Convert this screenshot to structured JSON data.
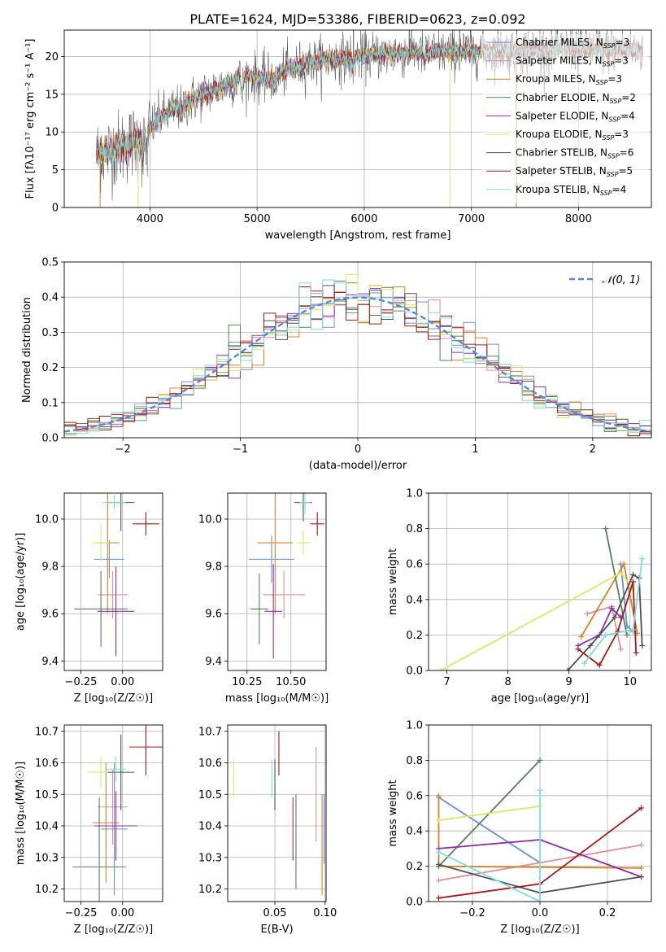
{
  "figure_title": "PLATE=1624, MJD=53386, FIBERID=0623, z=0.092",
  "models": [
    {
      "name": "Chabrier MILES",
      "nssp": "3",
      "color": "#6a8fd8"
    },
    {
      "name": "Salpeter MILES",
      "nssp": "3",
      "color": "#e08e9a"
    },
    {
      "name": "Kroupa MILES",
      "nssp": "3",
      "color": "#d4822a"
    },
    {
      "name": "Chabrier ELODIE",
      "nssp": "2",
      "color": "#55805a"
    },
    {
      "name": "Salpeter ELODIE",
      "nssp": "4",
      "color": "#8e2fa8"
    },
    {
      "name": "Kroupa ELODIE",
      "nssp": "3",
      "color": "#d8e86a"
    },
    {
      "name": "Chabrier STELIB",
      "nssp": "6",
      "color": "#505050"
    },
    {
      "name": "Salpeter STELIB",
      "nssp": "5",
      "color": "#a31a1a"
    },
    {
      "name": "Kroupa STELIB",
      "nssp": "4",
      "color": "#7fdcdc"
    }
  ],
  "chart_data": [
    {
      "id": "spectrum",
      "type": "line",
      "xlabel": "wavelength [Angstrom, rest frame]",
      "ylabel": "Flux [fλ10⁻¹⁷ erg cm⁻² s⁻¹ A⁻¹]",
      "xlim": [
        3200,
        8680
      ],
      "ylim": [
        0,
        23.5
      ],
      "xticks": [
        4000,
        5000,
        6000,
        7000,
        8000
      ],
      "yticks": [
        0,
        5,
        10,
        15,
        20
      ],
      "x_range_data": [
        3500,
        8600
      ],
      "continuum_x": [
        3500,
        3700,
        3900,
        4000,
        4100,
        4300,
        4500,
        4700,
        4900,
        5100,
        5300,
        5500,
        5800,
        6100,
        6400,
        6700,
        7000,
        7300,
        7600,
        8000,
        8300,
        8600
      ],
      "continuum_y": [
        7.0,
        7.8,
        9.0,
        10.5,
        12.0,
        13.5,
        15.0,
        16.2,
        17.5,
        17.0,
        18.3,
        19.2,
        19.8,
        20.2,
        20.5,
        20.6,
        20.7,
        20.8,
        20.9,
        21.0,
        20.9,
        20.8
      ],
      "absorption_lines": [
        {
          "x": 4861,
          "depth": 0.12
        },
        {
          "x": 5175,
          "depth": 0.1
        },
        {
          "x": 3934,
          "depth": 0.3
        },
        {
          "x": 3969,
          "depth": 0.3
        },
        {
          "x": 4300,
          "depth": 0.12
        },
        {
          "x": 5890,
          "depth": 0.08
        },
        {
          "x": 6563,
          "depth": 0.05
        }
      ],
      "spikes": [
        {
          "x": 3535,
          "y0": 0.0,
          "y1": 7.0,
          "model": 2
        },
        {
          "x": 3890,
          "y0": 0.0,
          "y1": 9.0,
          "model": 5
        },
        {
          "x": 6800,
          "y0": 0.0,
          "y1": 20.5,
          "model": 5
        },
        {
          "x": 7420,
          "y0": 0.0,
          "y1": 20.8,
          "model": 2
        },
        {
          "x": 5900,
          "y0": 20.0,
          "y1": 24.0,
          "model": 6
        },
        {
          "x": 6420,
          "y0": 20.0,
          "y1": 23.5,
          "model": 6
        },
        {
          "x": 6890,
          "y0": 20.0,
          "y1": 23.5,
          "model": 6
        }
      ]
    },
    {
      "id": "residuals",
      "type": "step",
      "xlabel": "(data-model)/error",
      "ylabel": "Normed distribution",
      "xlim": [
        -2.5,
        2.5
      ],
      "ylim": [
        0,
        0.5
      ],
      "xticks": [
        -2,
        -1,
        0,
        1,
        2
      ],
      "yticks": [
        0.0,
        0.1,
        0.2,
        0.3,
        0.4,
        0.5
      ],
      "legend_label": "𝒩(0, 1)",
      "legend_loc": "upper-right",
      "bin_width": 0.1,
      "bin_start": -2.5,
      "gaussian": {
        "mu": 0,
        "sigma": 1,
        "color": "#5b87d6"
      }
    },
    {
      "id": "age_vs_Z",
      "type": "errorbar",
      "xlabel": "Z [log₁₀(Z/Z☉)]",
      "ylabel": "age  [log₁₀(age/yr)]",
      "xlim": [
        -0.35,
        0.24
      ],
      "ylim": [
        9.36,
        10.11
      ],
      "xticks": [
        -0.25,
        0.0
      ],
      "xticklabels": [
        "−0.25",
        "0.00"
      ],
      "yticks": [
        9.4,
        9.6,
        9.8,
        10.0
      ],
      "points": [
        {
          "x": -0.08,
          "y": 9.83,
          "xerr": 0.09,
          "yerr": 0.08,
          "model": 0
        },
        {
          "x": -0.06,
          "y": 9.68,
          "xerr": 0.09,
          "yerr": 0.1,
          "model": 1
        },
        {
          "x": -0.09,
          "y": 9.9,
          "xerr": 0.07,
          "yerr": 0.3,
          "model": 2
        },
        {
          "x": -0.13,
          "y": 9.62,
          "xerr": 0.16,
          "yerr": 0.16,
          "model": 3
        },
        {
          "x": -0.04,
          "y": 9.61,
          "xerr": 0.11,
          "yerr": 0.19,
          "model": 4
        },
        {
          "x": -0.13,
          "y": 9.9,
          "xerr": 0.05,
          "yerr": 0.08,
          "model": 5
        },
        {
          "x": -0.01,
          "y": 10.07,
          "xerr": 0.08,
          "yerr": 0.12,
          "model": 6
        },
        {
          "x": 0.14,
          "y": 9.98,
          "xerr": 0.08,
          "yerr": 0.05,
          "model": 7
        },
        {
          "x": -0.05,
          "y": 10.07,
          "xerr": 0.07,
          "yerr": 0.03,
          "model": 8
        }
      ]
    },
    {
      "id": "age_vs_mass",
      "type": "errorbar",
      "xlabel": "mass [log₁₀(M/M☉)]",
      "ylabel": "",
      "xlim": [
        10.14,
        10.7
      ],
      "ylim": [
        9.36,
        10.11
      ],
      "xticks": [
        10.25,
        10.5
      ],
      "xticklabels": [
        "10.25",
        "10.50"
      ],
      "yticks": [
        9.4,
        9.6,
        9.8,
        10.0
      ],
      "points": [
        {
          "x": 10.39,
          "y": 9.83,
          "xerr": 0.13,
          "yerr": 0.1,
          "model": 0
        },
        {
          "x": 10.46,
          "y": 9.68,
          "xerr": 0.12,
          "yerr": 0.1,
          "model": 1
        },
        {
          "x": 10.41,
          "y": 9.9,
          "xerr": 0.1,
          "yerr": 0.3,
          "model": 2
        },
        {
          "x": 10.32,
          "y": 9.62,
          "xerr": 0.05,
          "yerr": 0.15,
          "model": 3
        },
        {
          "x": 10.4,
          "y": 9.61,
          "xerr": 0.05,
          "yerr": 0.2,
          "model": 4
        },
        {
          "x": 10.57,
          "y": 9.9,
          "xerr": 0.04,
          "yerr": 0.05,
          "model": 5
        },
        {
          "x": 10.57,
          "y": 10.07,
          "xerr": 0.05,
          "yerr": 0.08,
          "model": 6
        },
        {
          "x": 10.65,
          "y": 9.98,
          "xerr": 0.04,
          "yerr": 0.05,
          "model": 7
        },
        {
          "x": 10.58,
          "y": 10.07,
          "xerr": 0.03,
          "yerr": 0.05,
          "model": 8
        }
      ]
    },
    {
      "id": "weight_vs_age",
      "type": "line",
      "xlabel": "age  [log₁₀(age/yr)]",
      "ylabel": "mass weight",
      "xlim": [
        6.7,
        10.35
      ],
      "ylim": [
        0.0,
        1.0
      ],
      "xticks": [
        7,
        8,
        9,
        10
      ],
      "yticks": [
        0.0,
        0.2,
        0.4,
        0.6,
        0.8,
        1.0
      ],
      "series": [
        {
          "model": 0,
          "x": [
            9.85,
            9.95,
            10.05
          ],
          "y": [
            0.6,
            0.25,
            0.22
          ]
        },
        {
          "model": 1,
          "x": [
            9.3,
            9.7,
            9.85
          ],
          "y": [
            0.32,
            0.36,
            0.12
          ]
        },
        {
          "model": 2,
          "x": [
            9.2,
            9.9,
            10.12
          ],
          "y": [
            0.19,
            0.6,
            0.21
          ]
        },
        {
          "model": 3,
          "x": [
            9.6,
            9.95
          ],
          "y": [
            0.8,
            0.2
          ]
        },
        {
          "model": 4,
          "x": [
            9.15,
            9.5,
            9.7,
            9.85
          ],
          "y": [
            0.14,
            0.2,
            0.35,
            0.3
          ]
        },
        {
          "model": 5,
          "x": [
            6.9,
            9.85,
            10.05
          ],
          "y": [
            0.0,
            0.55,
            0.46
          ]
        },
        {
          "model": 6,
          "x": [
            8.98,
            9.35,
            9.75,
            10.05,
            10.15,
            10.2
          ],
          "y": [
            0.0,
            0.14,
            0.3,
            0.54,
            0.52,
            0.14
          ]
        },
        {
          "model": 7,
          "x": [
            9.15,
            9.5,
            9.8,
            10.05,
            10.1
          ],
          "y": [
            0.12,
            0.03,
            0.22,
            0.5,
            0.1
          ]
        },
        {
          "model": 8,
          "x": [
            9.25,
            9.6,
            10.05,
            10.2
          ],
          "y": [
            0.04,
            0.2,
            0.23,
            0.63
          ]
        }
      ]
    },
    {
      "id": "mass_vs_Z",
      "type": "errorbar",
      "xlabel": "Z [log₁₀(Z/Z☉)]",
      "ylabel": "mass [log₁₀(M/M☉)]",
      "xlim": [
        -0.35,
        0.24
      ],
      "ylim": [
        10.16,
        10.72
      ],
      "xticks": [
        -0.25,
        0.0
      ],
      "xticklabels": [
        "−0.25",
        "0.00"
      ],
      "yticks": [
        10.2,
        10.3,
        10.4,
        10.5,
        10.6,
        10.7
      ],
      "points": [
        {
          "x": -0.05,
          "y": 10.39,
          "xerr": 0.08,
          "yerr": 0.21,
          "model": 0
        },
        {
          "x": -0.06,
          "y": 10.46,
          "xerr": 0.09,
          "yerr": 0.12,
          "model": 1
        },
        {
          "x": -0.1,
          "y": 10.41,
          "xerr": 0.08,
          "yerr": 0.19,
          "model": 2
        },
        {
          "x": -0.14,
          "y": 10.27,
          "xerr": 0.16,
          "yerr": 0.22,
          "model": 3
        },
        {
          "x": -0.04,
          "y": 10.4,
          "xerr": 0.13,
          "yerr": 0.11,
          "model": 4
        },
        {
          "x": -0.13,
          "y": 10.57,
          "xerr": 0.08,
          "yerr": 0.05,
          "model": 5
        },
        {
          "x": -0.01,
          "y": 10.57,
          "xerr": 0.08,
          "yerr": 0.12,
          "model": 6
        },
        {
          "x": 0.14,
          "y": 10.65,
          "xerr": 0.1,
          "yerr": 0.09,
          "model": 7
        },
        {
          "x": -0.04,
          "y": 10.58,
          "xerr": 0.06,
          "yerr": 0.04,
          "model": 8
        }
      ]
    },
    {
      "id": "mass_vs_ebv",
      "type": "errorbar",
      "xlabel": "E(B-V)",
      "ylabel": "",
      "xlim": [
        0.003,
        0.101
      ],
      "ylim": [
        10.16,
        10.72
      ],
      "xticks": [
        0.05,
        0.1
      ],
      "xticklabels": [
        "0.05",
        "0.10"
      ],
      "yticks": [
        10.2,
        10.3,
        10.4,
        10.5,
        10.6,
        10.7
      ],
      "points": [
        {
          "x": 0.099,
          "y": 10.39,
          "xerr": 0,
          "yerr": 0.11,
          "model": 0
        },
        {
          "x": 0.091,
          "y": 10.5,
          "xerr": 0,
          "yerr": 0.15,
          "model": 1
        },
        {
          "x": 0.097,
          "y": 10.34,
          "xerr": 0,
          "yerr": 0.16,
          "model": 2
        },
        {
          "x": 0.071,
          "y": 10.35,
          "xerr": 0,
          "yerr": 0.15,
          "model": 3
        },
        {
          "x": 0.068,
          "y": 10.39,
          "xerr": 0,
          "yerr": 0.1,
          "model": 4
        },
        {
          "x": 0.009,
          "y": 10.55,
          "xerr": 0,
          "yerr": 0.06,
          "model": 5
        },
        {
          "x": 0.05,
          "y": 10.53,
          "xerr": 0,
          "yerr": 0.08,
          "model": 6
        },
        {
          "x": 0.054,
          "y": 10.63,
          "xerr": 0,
          "yerr": 0.07,
          "model": 7
        },
        {
          "x": 0.047,
          "y": 10.55,
          "xerr": 0,
          "yerr": 0.06,
          "model": 8
        }
      ]
    },
    {
      "id": "weight_vs_Z",
      "type": "line",
      "xlabel": "Z [log₁₀(Z/Z☉)]",
      "ylabel": "mass weight",
      "xlim": [
        -0.33,
        0.33
      ],
      "ylim": [
        0.0,
        1.0
      ],
      "xticks": [
        -0.2,
        0.0,
        0.2
      ],
      "xticklabels": [
        "−0.2",
        "0.0",
        "0.2"
      ],
      "yticks": [
        0.0,
        0.2,
        0.4,
        0.6,
        0.8,
        1.0
      ],
      "series": [
        {
          "model": 0,
          "x": [
            -0.3,
            0.0
          ],
          "y": [
            0.59,
            0.22
          ]
        },
        {
          "model": 1,
          "x": [
            -0.3,
            0.0,
            0.3
          ],
          "y": [
            0.12,
            0.22,
            0.32
          ]
        },
        {
          "model": 2,
          "x": [
            -0.3,
            -0.3,
            0.3
          ],
          "y": [
            0.6,
            0.2,
            0.19
          ]
        },
        {
          "model": 3,
          "x": [
            -0.3,
            0.0
          ],
          "y": [
            0.2,
            0.8
          ]
        },
        {
          "model": 4,
          "x": [
            -0.3,
            0.0,
            0.3
          ],
          "y": [
            0.3,
            0.35,
            0.14
          ]
        },
        {
          "model": 5,
          "x": [
            -0.3,
            0.0
          ],
          "y": [
            0.46,
            0.54
          ]
        },
        {
          "model": 6,
          "x": [
            -0.3,
            0.0,
            0.3
          ],
          "y": [
            0.21,
            0.05,
            0.14
          ]
        },
        {
          "model": 7,
          "x": [
            -0.3,
            0.0,
            0.3
          ],
          "y": [
            0.02,
            0.1,
            0.53
          ]
        },
        {
          "model": 8,
          "x": [
            -0.3,
            0.0,
            0.0
          ],
          "y": [
            0.28,
            0.0,
            0.63
          ]
        }
      ]
    }
  ]
}
